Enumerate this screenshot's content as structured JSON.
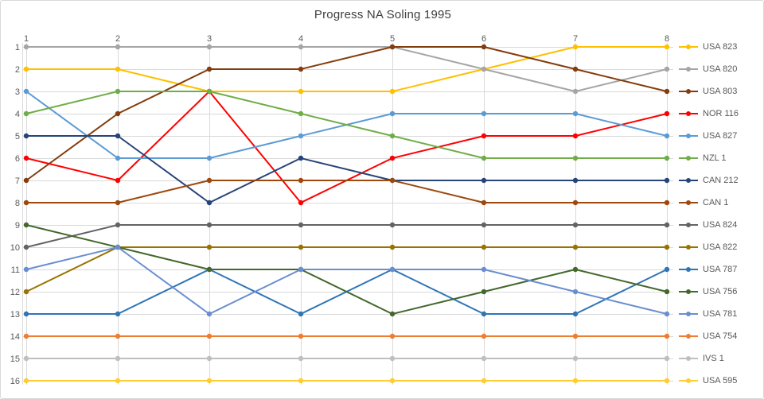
{
  "chart_data": {
    "type": "line",
    "title": "Progress NA Soling 1995",
    "xlabel": "",
    "ylabel": "",
    "x_categories": [
      "1",
      "2",
      "3",
      "4",
      "5",
      "6",
      "7",
      "8"
    ],
    "y_axis": {
      "ticks": [
        "1",
        "2",
        "3",
        "4",
        "5",
        "6",
        "7",
        "8",
        "9",
        "10",
        "11",
        "12",
        "13",
        "14",
        "15",
        "16"
      ],
      "min": 1,
      "max": 16,
      "reversed": true
    },
    "grid": true,
    "grid_color": "#D9D9D9",
    "axis_text_color": "#595959",
    "title_color": "#404040",
    "legend_position": "right",
    "series": [
      {
        "name": "USA 823",
        "color": "#FFC000",
        "values": [
          2,
          2,
          3,
          3,
          3,
          2,
          1,
          1
        ]
      },
      {
        "name": "USA 820",
        "color": "#A5A5A5",
        "values": [
          1,
          1,
          1,
          1,
          1,
          2,
          3,
          2
        ]
      },
      {
        "name": "USA 803",
        "color": "#843C0C",
        "values": [
          7,
          4,
          2,
          2,
          1,
          1,
          2,
          3
        ]
      },
      {
        "name": "NOR 116",
        "color": "#FF0000",
        "values": [
          6,
          7,
          3,
          8,
          6,
          5,
          5,
          4
        ]
      },
      {
        "name": "USA 827",
        "color": "#5B9BD5",
        "values": [
          3,
          6,
          6,
          5,
          4,
          4,
          4,
          5
        ]
      },
      {
        "name": "NZL 1",
        "color": "#70AD47",
        "values": [
          4,
          3,
          3,
          4,
          5,
          6,
          6,
          6
        ]
      },
      {
        "name": "CAN 212",
        "color": "#264478",
        "values": [
          5,
          5,
          8,
          6,
          7,
          7,
          7,
          7
        ]
      },
      {
        "name": "CAN 1",
        "color": "#9E480E",
        "values": [
          8,
          8,
          7,
          7,
          7,
          8,
          8,
          8
        ]
      },
      {
        "name": "USA 824",
        "color": "#636363",
        "values": [
          10,
          9,
          9,
          9,
          9,
          9,
          9,
          9
        ]
      },
      {
        "name": "USA 822",
        "color": "#997300",
        "values": [
          12,
          10,
          10,
          10,
          10,
          10,
          10,
          10
        ]
      },
      {
        "name": "USA 787",
        "color": "#2E75B6",
        "values": [
          13,
          13,
          11,
          13,
          11,
          13,
          13,
          11
        ]
      },
      {
        "name": "USA 756",
        "color": "#43682B",
        "values": [
          9,
          10,
          11,
          11,
          13,
          12,
          11,
          12
        ]
      },
      {
        "name": "USA 781",
        "color": "#698ED0",
        "values": [
          11,
          10,
          13,
          11,
          11,
          11,
          12,
          13
        ]
      },
      {
        "name": "USA 754",
        "color": "#ED7D31",
        "values": [
          14,
          14,
          14,
          14,
          14,
          14,
          14,
          14
        ]
      },
      {
        "name": "IVS 1",
        "color": "#BFBFBF",
        "values": [
          15,
          15,
          15,
          15,
          15,
          15,
          15,
          15
        ]
      },
      {
        "name": "USA 595",
        "color": "#FFCD33",
        "values": [
          16,
          16,
          16,
          16,
          16,
          16,
          16,
          16
        ]
      }
    ]
  }
}
